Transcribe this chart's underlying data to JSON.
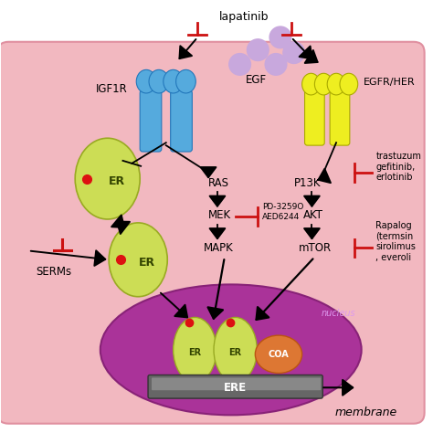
{
  "bg_color": "#ffffff",
  "cell_color": "#f2b8c0",
  "cell_edge": "#e090a0",
  "nucleus_color": "#aa3399",
  "nucleus_edge": "#882277",
  "igf1r_color": "#55aadd",
  "egfr_color": "#eeee20",
  "er_color": "#ccdd55",
  "er_edge": "#99aa22",
  "coa_color": "#dd7733",
  "coa_edge": "#bb5511",
  "ere_color": "#555555",
  "red_color": "#cc1111",
  "black": "#000000",
  "white": "#ffffff",
  "egf_color": "#c8a8dd",
  "title": "membrane",
  "lapatinib": "lapatinib",
  "igf1r_label": "IGF1R",
  "egf_label": "EGF",
  "egfr_label": "EGFR/HER",
  "ras_label": "RAS",
  "mek_label": "MEK",
  "mapk_label": "MAPK",
  "p13k_label": "P13K",
  "akt_label": "AKT",
  "mtor_label": "mTOR",
  "er_label": "ER",
  "ere_label": "ERE",
  "coa_label": "COA",
  "nucleus_label": "nucleus",
  "serms_label": "SERMs",
  "pd_label": "PD-3259O\nAED6244",
  "trastuz_label": "trastuzum\ngefitinib,\nerlotinib",
  "rapalog_label": "Rapalog\n(termsin\nsirolimus\n, everoli"
}
